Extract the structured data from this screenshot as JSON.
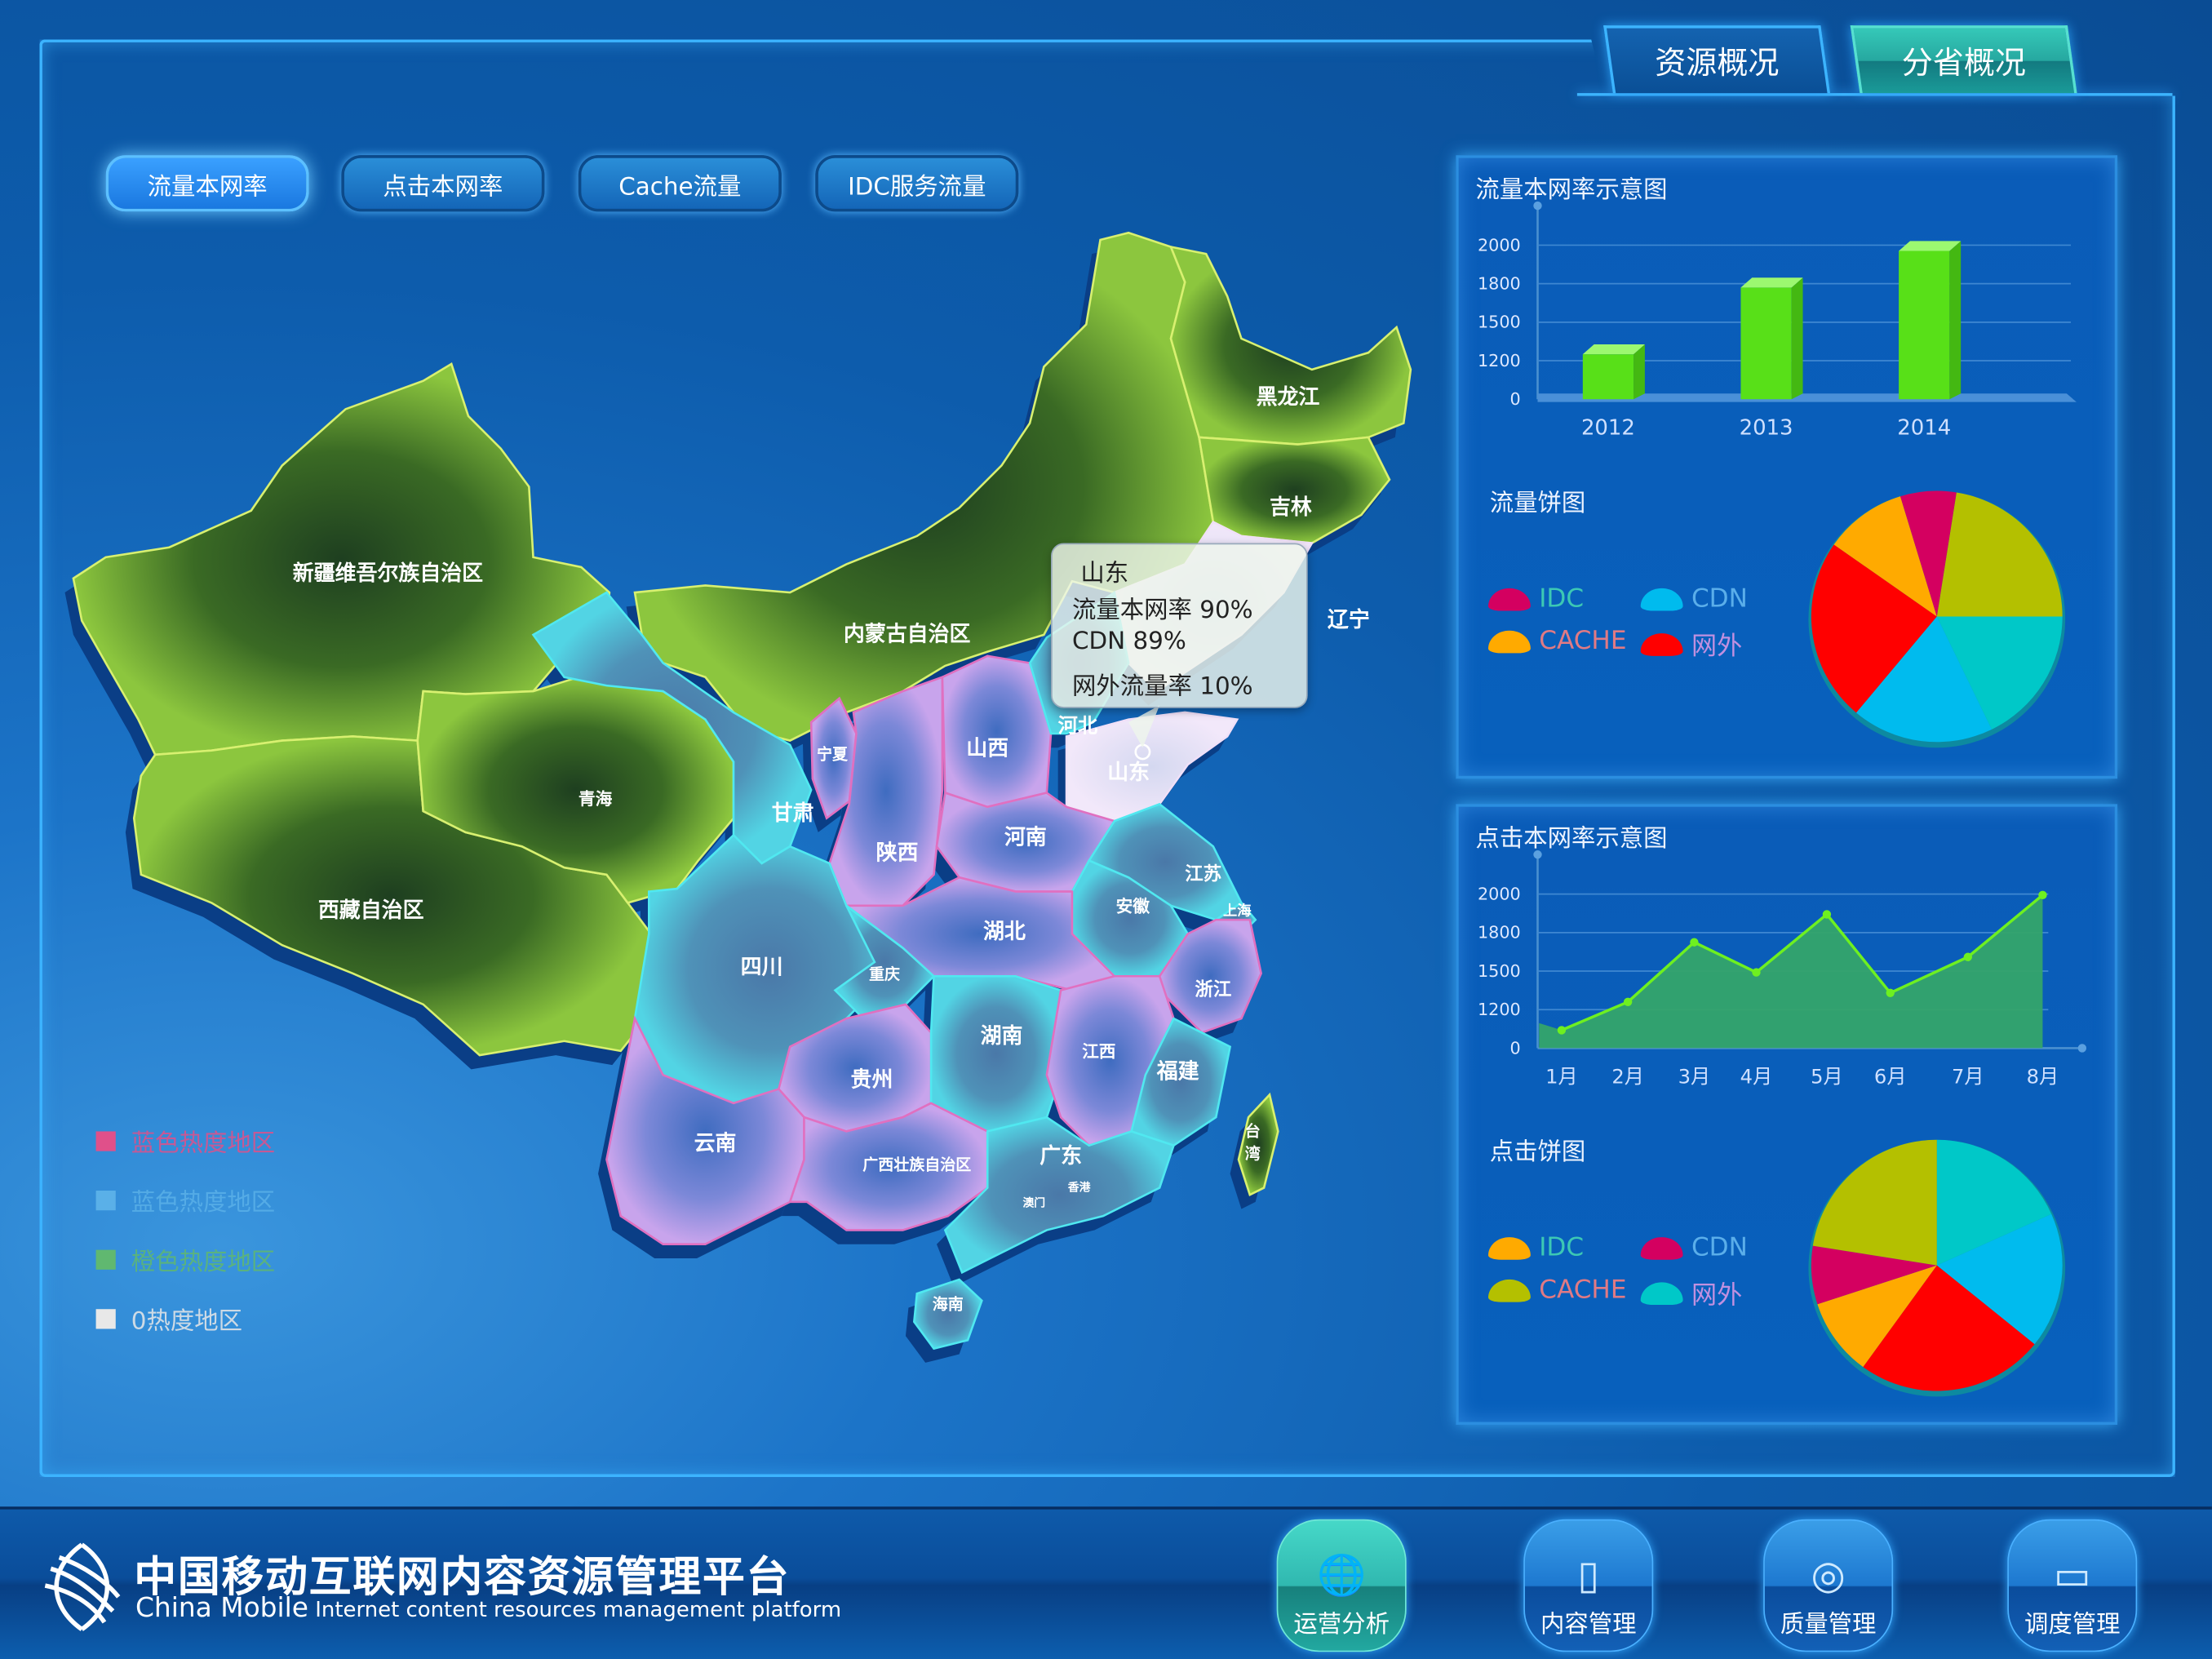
{
  "tabs": [
    {
      "label": "资源概况",
      "active": false
    },
    {
      "label": "分省概况",
      "active": true
    }
  ],
  "filters": [
    {
      "label": "流量本网率",
      "active": true
    },
    {
      "label": "点击本网率",
      "active": false
    },
    {
      "label": "Cache流量",
      "active": false
    },
    {
      "label": "IDC服务流量",
      "active": false
    }
  ],
  "map": {
    "provinces": [
      {
        "name": "新疆维吾尔族自治区",
        "heat": "green"
      },
      {
        "name": "西藏自治区",
        "heat": "green"
      },
      {
        "name": "青海",
        "heat": "green"
      },
      {
        "name": "内蒙古自治区",
        "heat": "green"
      },
      {
        "name": "黑龙江",
        "heat": "green"
      },
      {
        "name": "吉林",
        "heat": "green"
      },
      {
        "name": "辽宁",
        "heat": "white"
      },
      {
        "name": "甘肃",
        "heat": "blue"
      },
      {
        "name": "宁夏",
        "heat": "purple"
      },
      {
        "name": "陕西",
        "heat": "purple"
      },
      {
        "name": "山西",
        "heat": "purple"
      },
      {
        "name": "河北",
        "heat": "blue"
      },
      {
        "name": "山东",
        "heat": "white"
      },
      {
        "name": "河南",
        "heat": "purple"
      },
      {
        "name": "江苏",
        "heat": "blue"
      },
      {
        "name": "安徽",
        "heat": "blue"
      },
      {
        "name": "上海",
        "heat": "blue"
      },
      {
        "name": "浙江",
        "heat": "purple"
      },
      {
        "name": "湖北",
        "heat": "purple"
      },
      {
        "name": "四川",
        "heat": "blue"
      },
      {
        "name": "重庆",
        "heat": "blue"
      },
      {
        "name": "贵州",
        "heat": "purple"
      },
      {
        "name": "湖南",
        "heat": "blue"
      },
      {
        "name": "江西",
        "heat": "purple"
      },
      {
        "name": "福建",
        "heat": "blue"
      },
      {
        "name": "云南",
        "heat": "purple"
      },
      {
        "name": "广西壮族自治区",
        "heat": "purple"
      },
      {
        "name": "广东",
        "heat": "blue"
      },
      {
        "name": "香港",
        "heat": "blue"
      },
      {
        "name": "澳门",
        "heat": "blue"
      },
      {
        "name": "海南",
        "heat": "blue"
      },
      {
        "name": "台湾",
        "heat": "green"
      }
    ],
    "tooltip": {
      "title": "山东",
      "lines": [
        "流量本网率 90%",
        "CDN 89%",
        "网外流量率 10%"
      ]
    },
    "legend": [
      {
        "label": "蓝色热度地区",
        "color": "#e0508a"
      },
      {
        "label": "蓝色热度地区",
        "color": "#5ab0e8"
      },
      {
        "label": "橙色热度地区",
        "color": "#60b870"
      },
      {
        "label": "0热度地区",
        "color": "#e8e8e8"
      }
    ]
  },
  "panel1": {
    "title": "流量本网率示意图",
    "pie_title": "流量饼图"
  },
  "panel2": {
    "title": "点击本网率示意图",
    "pie_title": "点击饼图"
  },
  "chart_data": [
    {
      "type": "bar",
      "title": "流量本网率示意图",
      "categories": [
        "2012",
        "2013",
        "2014"
      ],
      "values": [
        1250,
        1770,
        1970
      ],
      "yticks": [
        "0",
        "1200",
        "1500",
        "1800",
        "2000"
      ],
      "color": "#58e018",
      "grid": true
    },
    {
      "type": "area",
      "title": "点击本网率示意图",
      "categories": [
        "1月",
        "2月",
        "3月",
        "4月",
        "5月",
        "6月",
        "7月",
        "8月"
      ],
      "values": [
        560,
        1260,
        1725,
        1490,
        1895,
        1330,
        1610,
        1995
      ],
      "yticks": [
        "0",
        "1200",
        "1500",
        "1800",
        "2000"
      ],
      "line_color": "#6ef020",
      "fill_color": "#34a46a",
      "grid": true
    },
    {
      "type": "pie",
      "title": "流量饼图",
      "slices": [
        {
          "label": "",
          "value": 22.5,
          "color": "#b4c000"
        },
        {
          "label": "",
          "value": 17.8,
          "color": "#00c8c8"
        },
        {
          "label": "CDN",
          "value": 18.3,
          "color": "#00bbee"
        },
        {
          "label": "网外",
          "value": 23.6,
          "color": "#ff0000"
        },
        {
          "label": "CACHE",
          "value": 10.6,
          "color": "#ffaa00"
        },
        {
          "label": "IDC",
          "value": 7.2,
          "color": "#d40060"
        }
      ],
      "legend": [
        {
          "label": "IDC",
          "color": "#d40060"
        },
        {
          "label": "CDN",
          "color": "#00bbee"
        },
        {
          "label": "CACHE",
          "color": "#ffaa00"
        },
        {
          "label": "网外",
          "color": "#ff0000"
        }
      ]
    },
    {
      "type": "pie",
      "title": "点击饼图",
      "slices": [
        {
          "label": "网外",
          "value": 18.3,
          "color": "#00c8c8"
        },
        {
          "label": "",
          "value": 17.5,
          "color": "#00bbee"
        },
        {
          "label": "",
          "value": 24.2,
          "color": "#ff0000"
        },
        {
          "label": "IDC",
          "value": 10.0,
          "color": "#ffaa00"
        },
        {
          "label": "CDN",
          "value": 7.5,
          "color": "#d40060"
        },
        {
          "label": "CACHE",
          "value": 22.5,
          "color": "#b4c000"
        }
      ],
      "legend": [
        {
          "label": "IDC",
          "color": "#ffaa00"
        },
        {
          "label": "CDN",
          "color": "#d40060"
        },
        {
          "label": "CACHE",
          "color": "#b4c000"
        },
        {
          "label": "网外",
          "color": "#00c8c8"
        }
      ]
    }
  ],
  "legend_text_colors": {
    "IDC": "#3cc8b4",
    "CDN": "#5aaeea",
    "CACHE": "#e07a84",
    "网外": "#c090e0"
  },
  "footer": {
    "title_cn": "中国移动互联网内容资源管理平台",
    "title_en_brand": "China Mobile",
    "title_en_rest": "Internet content resources management platform",
    "nav": [
      {
        "label": "运营分析",
        "icon": "globe-icon",
        "active": true
      },
      {
        "label": "内容管理",
        "icon": "document-icon",
        "active": false
      },
      {
        "label": "质量管理",
        "icon": "compass-icon",
        "active": false
      },
      {
        "label": "调度管理",
        "icon": "monitor-icon",
        "active": false
      }
    ]
  }
}
